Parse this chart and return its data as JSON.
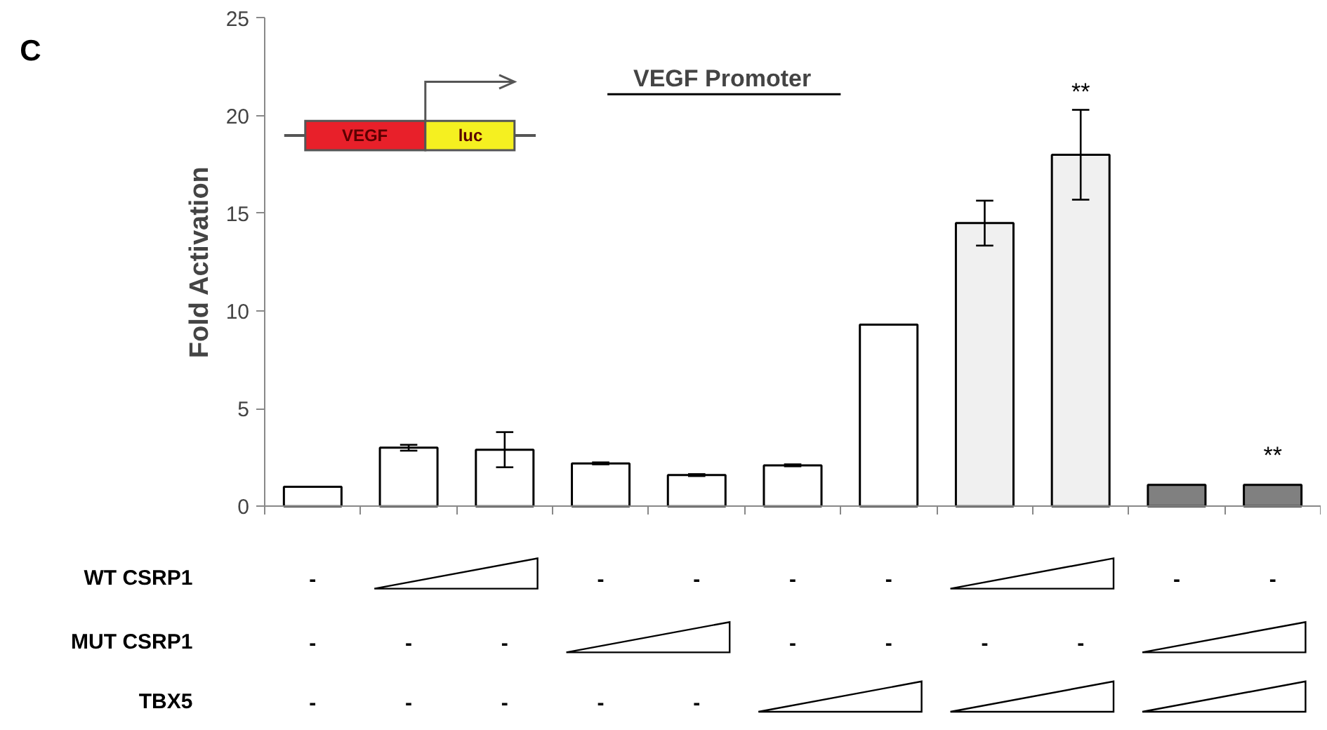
{
  "chart_data": {
    "type": "bar",
    "title": "VEGF  Promoter",
    "ylabel": "Fold Activation",
    "categories": [
      null,
      null,
      null,
      null,
      null,
      null,
      null,
      null,
      null,
      null,
      null
    ],
    "values": [
      1.0,
      3.0,
      2.9,
      2.2,
      1.6,
      2.1,
      9.3,
      14.5,
      18.0,
      1.1,
      1.1
    ],
    "colors": [
      "#ffffff",
      "#ffffff",
      "#ffffff",
      "#ffffff",
      "#ffffff",
      "#ffffff",
      "#ffffff",
      "#f0f0f0",
      "#f0f0f0",
      "#808080",
      "#808080"
    ],
    "errors": [
      null,
      0.15,
      0.9,
      0.05,
      0.05,
      0.05,
      null,
      1.15,
      2.3,
      null,
      null
    ],
    "ylim": [
      0,
      25
    ],
    "yticks": [
      0,
      5,
      10,
      15,
      20,
      25
    ],
    "grid": false,
    "annotations": [
      "C",
      "VEGF",
      "luc",
      "WT CSRP1",
      "MUT CSRP1",
      "TBX5",
      "-",
      "-",
      "-",
      "-",
      "-",
      "-",
      "-",
      "-",
      "-",
      "-",
      "-",
      "-",
      "-",
      "-",
      "-",
      "-",
      "-",
      "-",
      "-",
      "**",
      "**"
    ]
  }
}
